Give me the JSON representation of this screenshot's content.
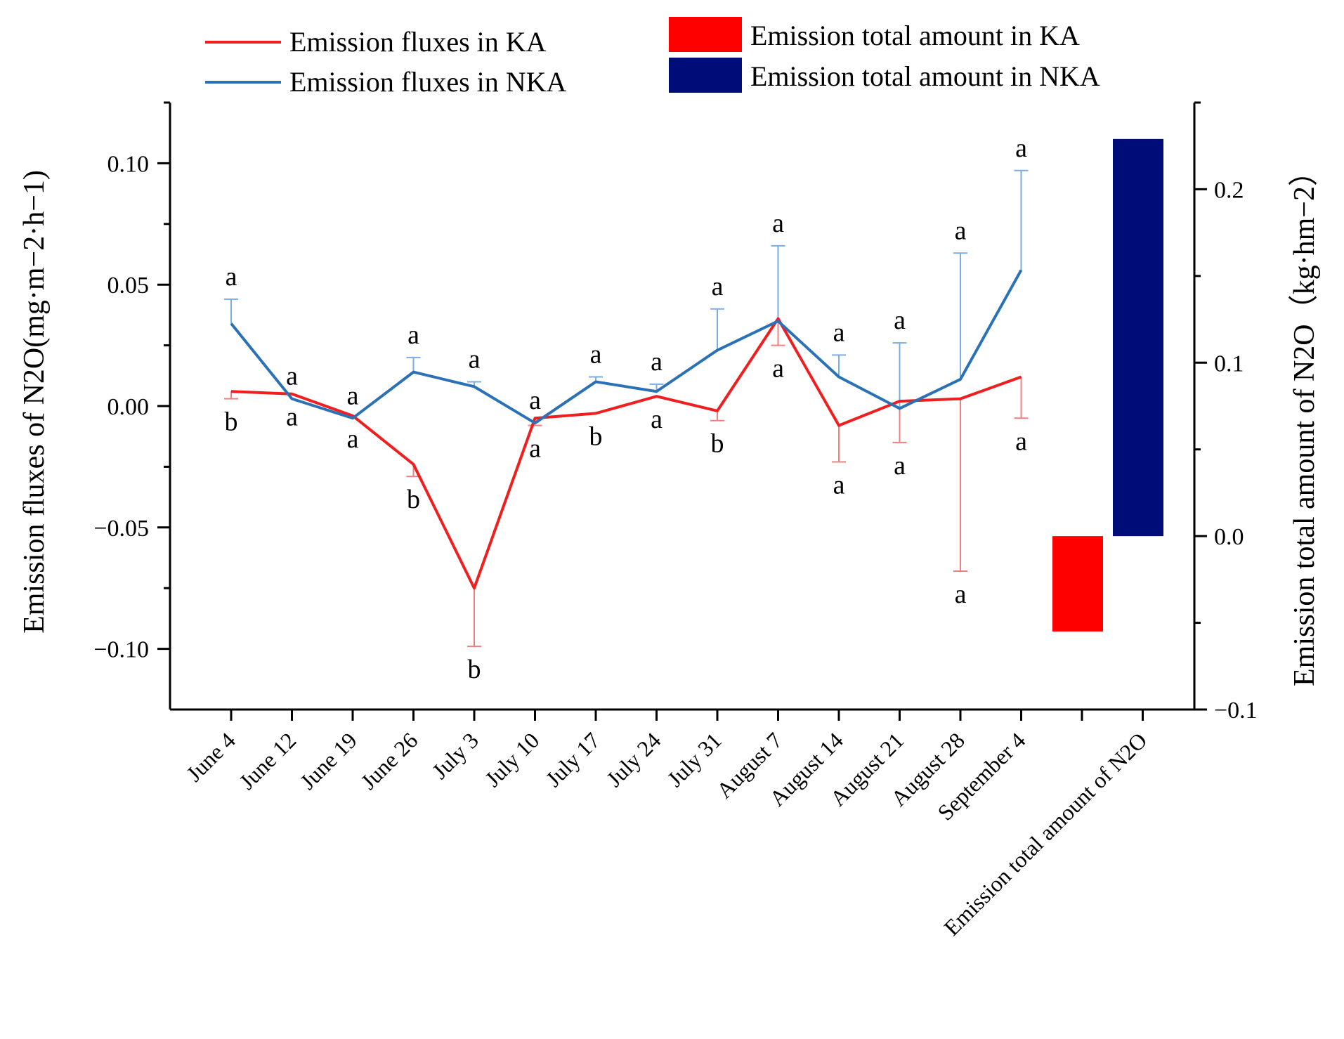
{
  "chart_data": {
    "type": "line+bar",
    "categories": [
      "June 4",
      "June 12",
      "June 19",
      "June 26",
      "July 3",
      "July 10",
      "July 17",
      "July 24",
      "July 31",
      "August 7",
      "August 14",
      "August 21",
      "August 28",
      "September 4"
    ],
    "bar_category": "Emission total amount of N2O",
    "left_axis": {
      "title": "Emission fluxes of N2O(mg·m−2·h−1)",
      "ylim": [
        -0.125,
        0.125
      ],
      "ticks": [
        -0.1,
        -0.05,
        0.0,
        0.05,
        0.1
      ],
      "tick_labels": [
        "−0.10",
        "−0.05",
        "0.00",
        "0.05",
        "0.10"
      ]
    },
    "right_axis": {
      "title": "Emission total amount of N2O（kg·hm−2）",
      "ylim": [
        -0.1,
        0.25
      ],
      "ticks": [
        -0.1,
        0.0,
        0.1,
        0.2
      ],
      "tick_labels": [
        "−0.1",
        "0.0",
        "0.1",
        "0.2"
      ]
    },
    "series": [
      {
        "name": "Emission fluxes in KA",
        "color": "#f01e1e",
        "values": [
          0.006,
          0.005,
          -0.004,
          -0.024,
          -0.075,
          -0.005,
          -0.003,
          0.004,
          -0.002,
          0.036,
          -0.008,
          0.002,
          0.003,
          0.012
        ],
        "err_lo": [
          0.003,
          0.0,
          0.0,
          0.005,
          0.024,
          0.003,
          0.0,
          0.0,
          0.004,
          0.011,
          0.015,
          0.017,
          0.071,
          0.017
        ],
        "err_hi": [
          0.0,
          0.0,
          0.0,
          0.0,
          0.0,
          0.0,
          0.0,
          0.0,
          0.0,
          0.0,
          0.0,
          0.0,
          0.0,
          0.0
        ],
        "labels": [
          "b",
          "a",
          "a",
          "b",
          "b",
          "a",
          "b",
          "a",
          "b",
          "a",
          "a",
          "a",
          "a",
          "a"
        ]
      },
      {
        "name": "Emission fluxes in NKA",
        "color": "#2a72b5",
        "values": [
          0.034,
          0.003,
          -0.005,
          0.014,
          0.008,
          -0.007,
          0.01,
          0.006,
          0.023,
          0.035,
          0.012,
          -0.001,
          0.011,
          0.056
        ],
        "err_lo": [
          0.0,
          0.0,
          0.0,
          0.0,
          0.0,
          0.0,
          0.0,
          0.0,
          0.0,
          0.0,
          0.0,
          0.0,
          0.0,
          0.0
        ],
        "err_hi": [
          0.01,
          0.0,
          0.0,
          0.006,
          0.002,
          0.0,
          0.002,
          0.003,
          0.017,
          0.031,
          0.009,
          0.027,
          0.052,
          0.041
        ],
        "labels": [
          "a",
          "a",
          "a",
          "a",
          "a",
          "a",
          "a",
          "a",
          "a",
          "a",
          "a",
          "a",
          "a",
          "a"
        ]
      }
    ],
    "bars": [
      {
        "name": "Emission total amount in KA",
        "color": "#ff0000",
        "value": -0.055
      },
      {
        "name": "Emission total amount in NKA",
        "color": "#000c78",
        "value": 0.229
      }
    ],
    "legend_placement": "top"
  }
}
